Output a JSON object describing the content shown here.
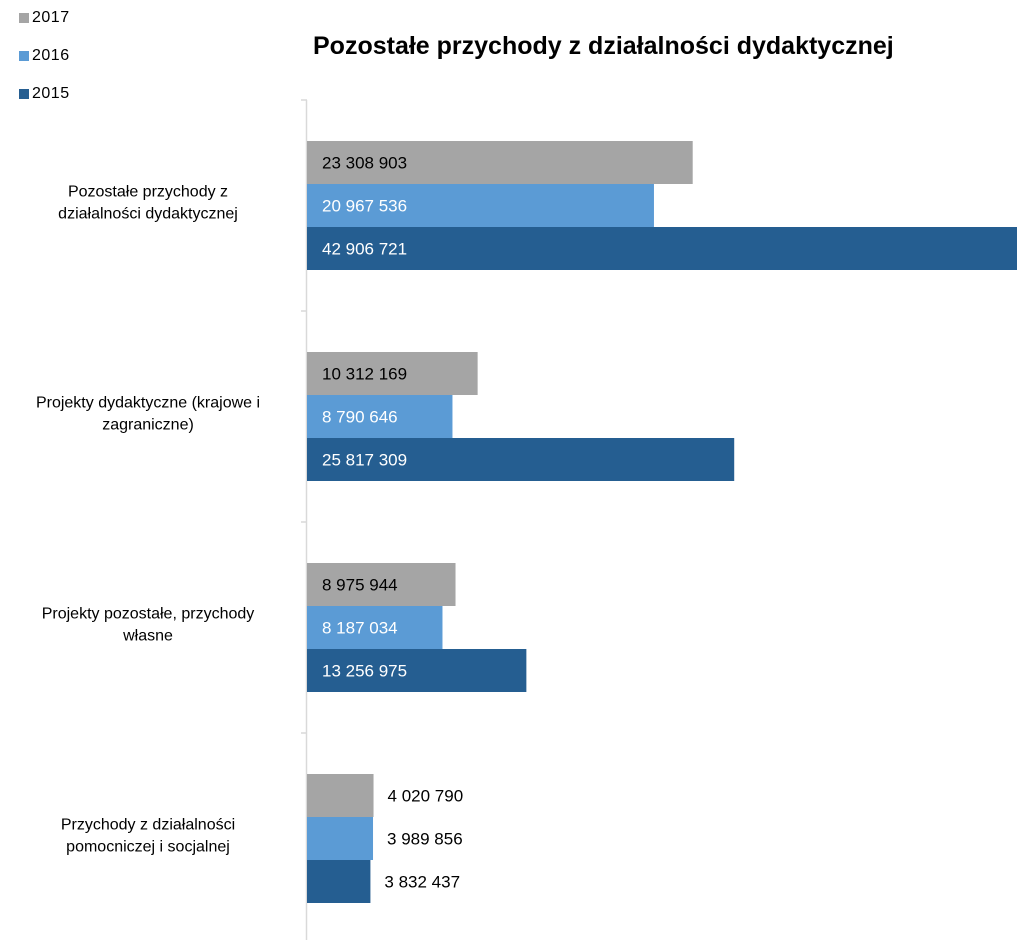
{
  "chart_data": {
    "type": "bar",
    "orientation": "horizontal",
    "title": "Pozostałe przychody z działalności dydaktycznej",
    "categories": [
      "Pozostałe przychody z działalności dydaktycznej",
      "Projekty dydaktyczne (krajowe i zagraniczne)",
      "Projekty pozostałe, przychody własne",
      "Przychody z działalności pomocniczej i socjalnej"
    ],
    "category_lines": [
      [
        "Pozostałe przychody z",
        "działalności dydaktycznej"
      ],
      [
        "Projekty dydaktyczne (krajowe i",
        "zagraniczne)"
      ],
      [
        "Projekty pozostałe, przychody",
        "własne"
      ],
      [
        "Przychody z działalności",
        "pomocniczej i socjalnej"
      ]
    ],
    "series": [
      {
        "name": "2017",
        "color": "#a5a5a5",
        "label_color": "#000000",
        "values": [
          23308903,
          10312169,
          8975944,
          4020790
        ],
        "labels": [
          "23 308 903",
          "10 312 169",
          "8 975 944",
          "4 020 790"
        ]
      },
      {
        "name": "2016",
        "color": "#5b9bd5",
        "label_color": "#ffffff",
        "values": [
          20967536,
          8790646,
          8187034,
          3989856
        ],
        "labels": [
          "20 967 536",
          "8 790 646",
          "8 187 034",
          "3 989 856"
        ]
      },
      {
        "name": "2015",
        "color": "#255e91",
        "label_color": "#ffffff",
        "values": [
          42906721,
          25817309,
          13256975,
          3832437
        ],
        "labels": [
          "42 906 721",
          "25 817 309",
          "13 256 975",
          "3 832 437"
        ]
      }
    ],
    "legend_position": "top-left",
    "grid": false
  }
}
